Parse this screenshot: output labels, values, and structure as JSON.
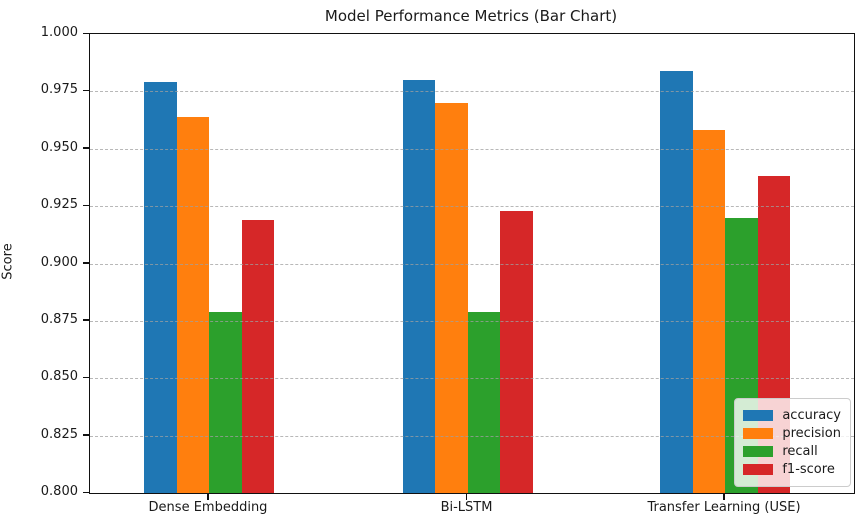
{
  "figure": {
    "background": "#ffffff",
    "axis_color": "#111111",
    "grid_color": "#a0a0a0"
  },
  "chart_data": {
    "type": "bar",
    "title": "Model Performance Metrics (Bar Chart)",
    "xlabel": "",
    "ylabel": "Score",
    "ylim": [
      0.8,
      1.0
    ],
    "ytick_step": 0.025,
    "ytick_labels": [
      "1.000",
      "0.975",
      "0.950",
      "0.925",
      "0.900",
      "0.875",
      "0.850",
      "0.825",
      "0.800"
    ],
    "grid": "horizontal-dashed-over-bars",
    "legend_position": "lower right",
    "categories": [
      "Dense Embedding",
      "Bi-LSTM",
      "Transfer Learning (USE)"
    ],
    "series": [
      {
        "name": "accuracy",
        "color": "#1f77b4",
        "values": [
          0.979,
          0.98,
          0.984
        ]
      },
      {
        "name": "precision",
        "color": "#ff7f0e",
        "values": [
          0.964,
          0.97,
          0.958
        ]
      },
      {
        "name": "recall",
        "color": "#2ca02c",
        "values": [
          0.879,
          0.879,
          0.92
        ]
      },
      {
        "name": "f1-score",
        "color": "#d62728",
        "values": [
          0.919,
          0.923,
          0.938
        ]
      }
    ]
  }
}
